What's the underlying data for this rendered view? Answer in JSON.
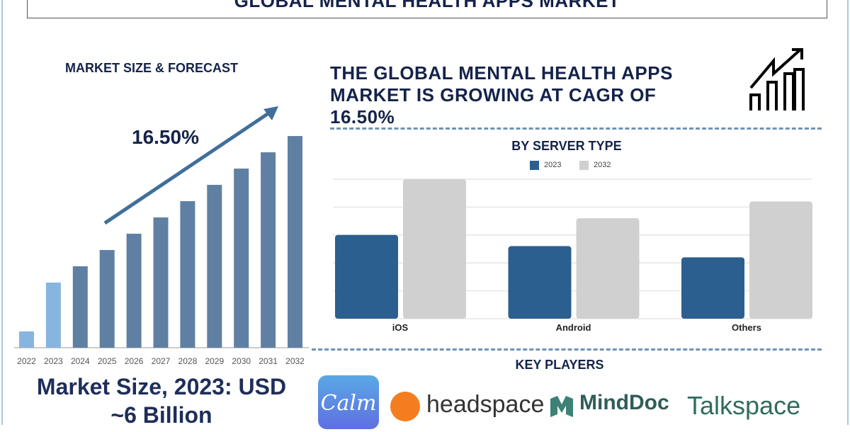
{
  "title": "GLOBAL MENTAL HEALTH APPS MARKET",
  "left": {
    "heading": "MARKET SIZE & FORECAST",
    "cagr_label": "16.50%",
    "market_size_line1": "Market Size, 2023: USD",
    "market_size_line2": "~6 Billion"
  },
  "headline": {
    "line1": "THE GLOBAL MENTAL HEALTH APPS",
    "line2": "MARKET IS GROWING AT CAGR OF",
    "line3": "16.50%"
  },
  "key_players": {
    "heading": "KEY PLAYERS",
    "logos": [
      "Calm",
      "headspace",
      "MindDoc",
      "Talkspace"
    ]
  },
  "colors": {
    "navy": "#14234a",
    "bar_2023": "#2b5f8f",
    "bar_2032": "#d0d0d0",
    "forecast_bar": "#5f80a3",
    "history_bar": "#86b5e0"
  },
  "chart_data": [
    {
      "type": "bar",
      "title": "MARKET SIZE & FORECAST",
      "categories": [
        "2022",
        "2023",
        "2024",
        "2025",
        "2026",
        "2027",
        "2028",
        "2029",
        "2030",
        "2031",
        "2032"
      ],
      "values": [
        1.5,
        6,
        7.5,
        9,
        10.5,
        12,
        13.5,
        15,
        16.5,
        18,
        19.5
      ],
      "historical": [
        true,
        true,
        false,
        false,
        false,
        false,
        false,
        false,
        false,
        false,
        false
      ],
      "annotation": "16.50%",
      "grid": false
    },
    {
      "type": "bar",
      "title": "BY SERVER TYPE",
      "categories": [
        "iOS",
        "Android",
        "Others"
      ],
      "series": [
        {
          "name": "2023",
          "values": [
            3.0,
            2.6,
            2.2
          ]
        },
        {
          "name": "2032",
          "values": [
            5.0,
            3.6,
            4.2
          ]
        }
      ],
      "ylim": [
        0,
        5
      ],
      "grid": true,
      "legend": "top"
    }
  ]
}
